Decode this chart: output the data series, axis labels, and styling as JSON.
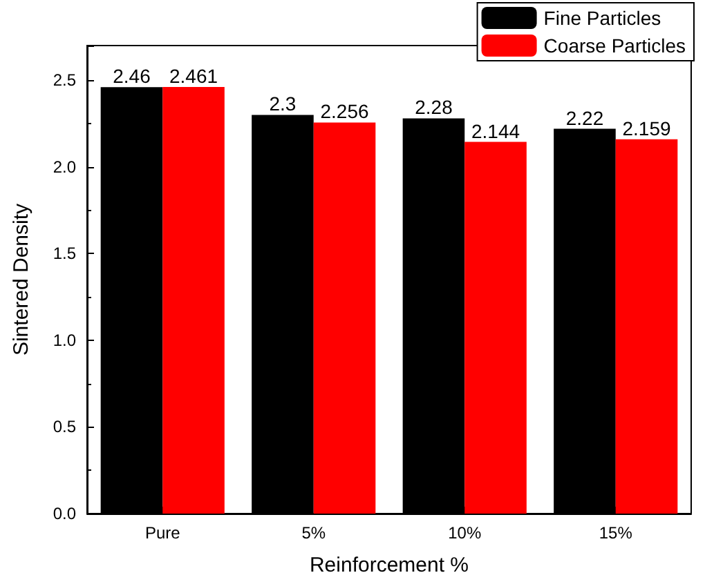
{
  "chart_data": {
    "type": "bar",
    "xlabel": "Reinforcement %",
    "ylabel": "Sintered Density",
    "categories": [
      "Pure",
      "5%",
      "10%",
      "15%"
    ],
    "series": [
      {
        "name": "Fine Particles",
        "color": "#000000",
        "values": [
          2.46,
          2.3,
          2.28,
          2.22
        ]
      },
      {
        "name": "Coarse Particles",
        "color": "#ff0000",
        "values": [
          2.461,
          2.256,
          2.144,
          2.159
        ]
      }
    ],
    "ylim": [
      0,
      2.7
    ],
    "yticks": [
      {
        "value": 0,
        "label": "0.0"
      },
      0.5,
      {
        "value": 1,
        "label": "1.0"
      },
      1.5,
      {
        "value": 2,
        "label": "2.0"
      },
      2.5
    ],
    "data_labels": true,
    "legend": "top right",
    "grid": false
  }
}
